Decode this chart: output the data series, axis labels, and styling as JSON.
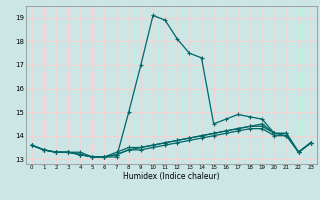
{
  "title": "",
  "xlabel": "Humidex (Indice chaleur)",
  "bg_color": "#cce5e5",
  "grid_color": "#ffcccc",
  "line_color": "#006666",
  "xlim": [
    -0.5,
    23.5
  ],
  "ylim": [
    12.8,
    19.5
  ],
  "yticks": [
    13,
    14,
    15,
    16,
    17,
    18,
    19
  ],
  "xticks": [
    0,
    1,
    2,
    3,
    4,
    5,
    6,
    7,
    8,
    9,
    10,
    11,
    12,
    13,
    14,
    15,
    16,
    17,
    18,
    19,
    20,
    21,
    22,
    23
  ],
  "series": [
    [
      13.6,
      13.4,
      13.3,
      13.3,
      13.3,
      13.1,
      13.1,
      13.1,
      15.0,
      17.0,
      19.1,
      18.9,
      18.1,
      17.5,
      17.3,
      14.5,
      14.7,
      14.9,
      14.8,
      14.7,
      14.1,
      14.1,
      13.3,
      13.7
    ],
    [
      13.6,
      13.4,
      13.3,
      13.3,
      13.2,
      13.1,
      13.1,
      13.3,
      13.5,
      13.5,
      13.6,
      13.7,
      13.8,
      13.9,
      14.0,
      14.1,
      14.2,
      14.3,
      14.4,
      14.5,
      14.1,
      14.1,
      13.3,
      13.7
    ],
    [
      13.6,
      13.4,
      13.3,
      13.3,
      13.2,
      13.1,
      13.1,
      13.2,
      13.4,
      13.5,
      13.6,
      13.7,
      13.8,
      13.9,
      14.0,
      14.1,
      14.2,
      14.3,
      14.4,
      14.4,
      14.1,
      14.0,
      13.3,
      13.7
    ],
    [
      13.6,
      13.4,
      13.3,
      13.3,
      13.2,
      13.1,
      13.1,
      13.2,
      13.4,
      13.4,
      13.5,
      13.6,
      13.7,
      13.8,
      13.9,
      14.0,
      14.1,
      14.2,
      14.3,
      14.3,
      14.0,
      14.0,
      13.3,
      13.7
    ]
  ]
}
